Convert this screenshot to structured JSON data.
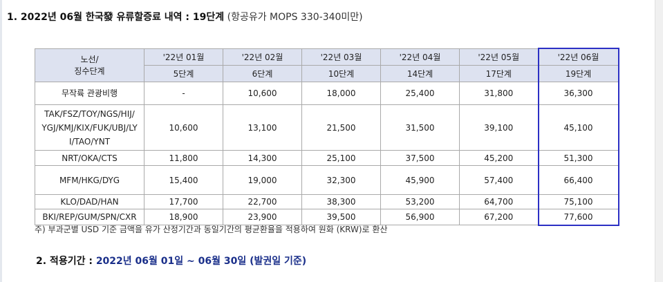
{
  "section1": {
    "title_bold": "1. 2022년 06월 한국發 유류할증료 내역 : 19단계",
    "title_note": "(항공유가 MOPS 330-340미만)"
  },
  "table": {
    "header_route": "노선/",
    "header_stage": "징수단계",
    "months": [
      "'22년 01월",
      "'22년 02월",
      "'22년 03월",
      "'22년 04월",
      "'22년 05월",
      "'22년 06월"
    ],
    "stages": [
      "5단계",
      "6단계",
      "10단계",
      "14단계",
      "17단계",
      "19단계"
    ],
    "rows": [
      {
        "route": "무작륙 관광비행",
        "values": [
          "-",
          "10,600",
          "18,000",
          "25,400",
          "31,800",
          "36,300"
        ]
      },
      {
        "route": "TAK/FSZ/TOY/NGS/HIJ/\nYGJ/KMJ/KIX/FUK/UBJ/LY\nI/TAO/YNT",
        "values": [
          "10,600",
          "13,100",
          "21,500",
          "31,500",
          "39,100",
          "45,100"
        ]
      },
      {
        "route": "NRT/OKA/CTS",
        "values": [
          "11,800",
          "14,300",
          "25,100",
          "37,500",
          "45,200",
          "51,300"
        ]
      },
      {
        "route": "MFM/HKG/DYG",
        "values": [
          "15,400",
          "19,000",
          "32,300",
          "45,900",
          "57,400",
          "66,400"
        ]
      },
      {
        "route": "KLO/DAD/HAN",
        "values": [
          "17,700",
          "22,700",
          "38,300",
          "53,200",
          "64,700",
          "75,100"
        ]
      },
      {
        "route": "BKI/REP/GUM/SPN/CXR",
        "values": [
          "18,900",
          "23,900",
          "39,500",
          "56,900",
          "67,200",
          "77,600"
        ]
      }
    ]
  },
  "note": "주) 부과군별 USD 기준 금액을 유가 산정기간과 동일기간의 평균환율을 적용하여 원화 (KRW)로 환산",
  "section2": {
    "label": "2. 적용기간 :",
    "period": "2022년 06월 01일 ~ 06월 30일 (발권일 기준)"
  },
  "colors": {
    "header_bg": "#dde2f0",
    "highlight_border": "#2b2fc4",
    "period_text": "#1a2f8a"
  }
}
